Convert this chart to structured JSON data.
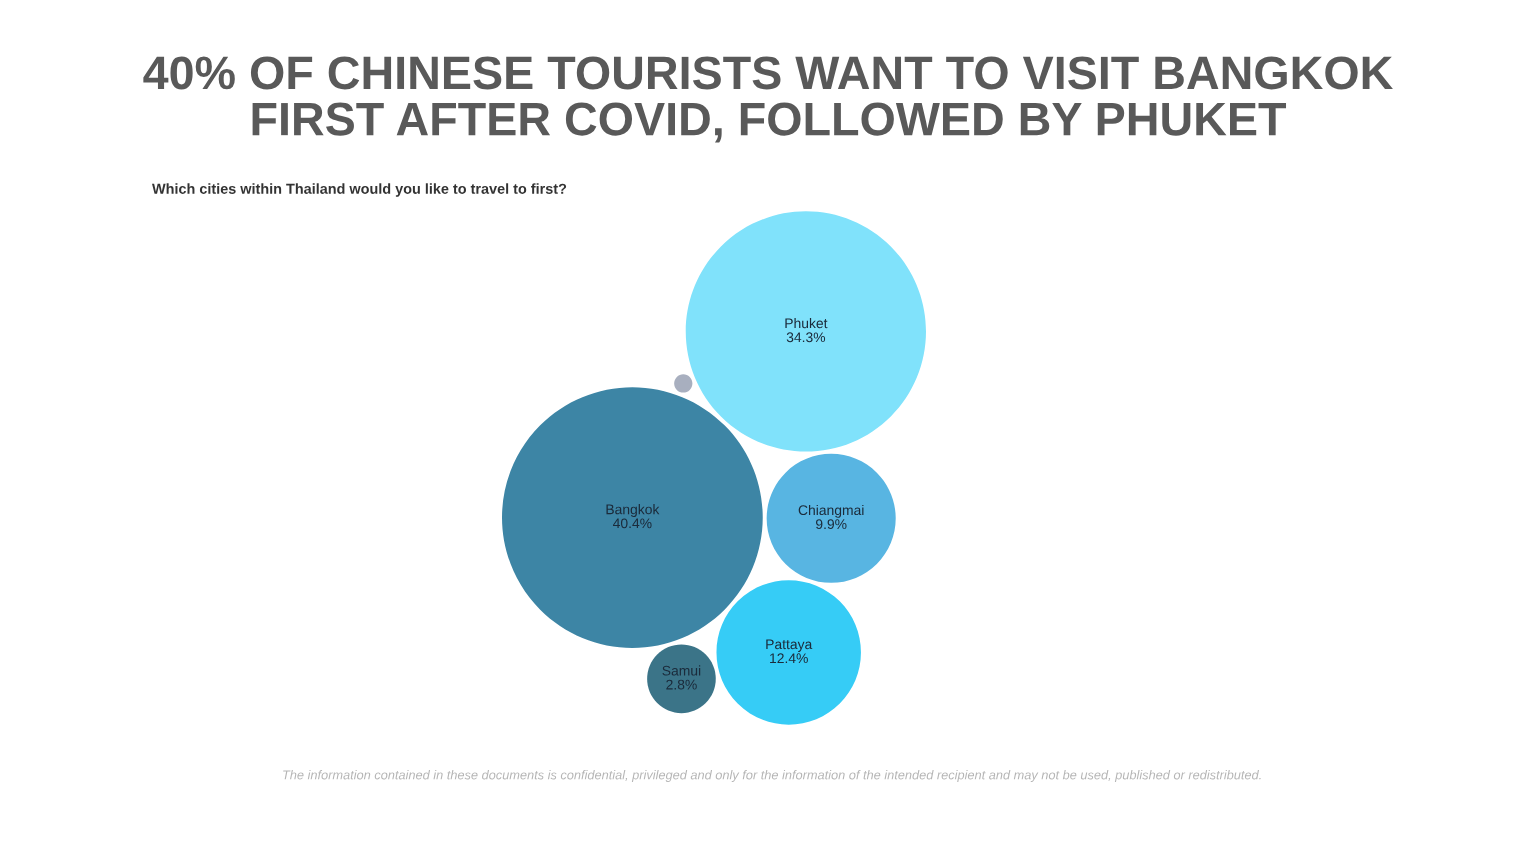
{
  "chart_data": {
    "type": "other",
    "title": "40% OF CHINESE TOURISTS WANT TO VISIT BANGKOK\nFIRST AFTER COVID, FOLLOWED BY PHUKET",
    "subtitle": "Which cities within Thailand would you like to travel to first?",
    "categories": [
      "Bangkok",
      "Phuket",
      "Chiangmai",
      "Pattaya",
      "Samui",
      null
    ],
    "values": [
      40.4,
      34.3,
      9.9,
      12.4,
      2.8,
      null
    ],
    "value_labels": [
      "40.4%",
      "34.3%",
      "9.9%",
      "12.4%",
      "2.8%",
      null
    ],
    "colors": [
      "#3d85a5",
      "#80e2fb",
      "#58b5e2",
      "#36ccf6",
      "#3b7488",
      "#a8afbf"
    ],
    "annotations": [
      "The information contained in these documents is confidential, privileged and only for the information of the intended recipient and may not be used, published or redistributed."
    ]
  }
}
